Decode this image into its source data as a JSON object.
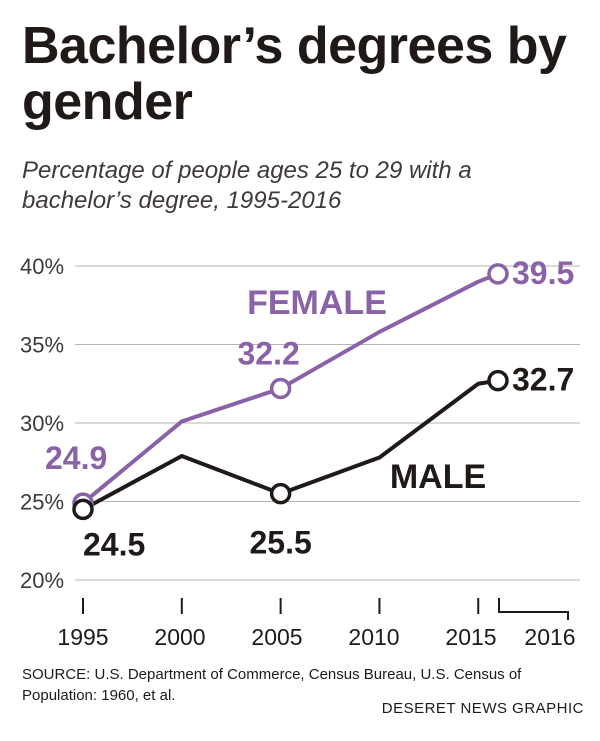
{
  "header": {
    "title": "Bachelor’s degrees by gender",
    "subtitle": "Percentage of people ages 25 to 29 with a bachelor’s degree, 1995-2016"
  },
  "chart_data": {
    "type": "line",
    "title": "Bachelor’s degrees by gender",
    "subtitle": "Percentage of people ages 25 to 29 with a bachelor’s degree, 1995-2016",
    "xlabel": "",
    "ylabel": "",
    "xlim": [
      1995,
      2016
    ],
    "ylim": [
      20,
      40
    ],
    "grid": true,
    "y_ticks": [
      20,
      25,
      30,
      35,
      40
    ],
    "y_tick_labels": [
      "20%",
      "25%",
      "30%",
      "35%",
      "40%"
    ],
    "x_ticks": [
      1995,
      2000,
      2005,
      2010,
      2015,
      2016
    ],
    "x_tick_labels": [
      "1995",
      "2000",
      "2005",
      "2010",
      "2015",
      "2016"
    ],
    "series": [
      {
        "name": "FEMALE",
        "color": "#8a62a8",
        "x": [
          1995,
          2000,
          2005,
          2010,
          2015,
          2016
        ],
        "values": [
          24.9,
          30.1,
          32.2,
          35.8,
          39.0,
          39.5
        ],
        "labeled_points": [
          {
            "x": 1995,
            "y": 24.9,
            "label": "24.9"
          },
          {
            "x": 2005,
            "y": 32.2,
            "label": "32.2"
          },
          {
            "x": 2016,
            "y": 39.5,
            "label": "39.5"
          }
        ]
      },
      {
        "name": "MALE",
        "color": "#1f1a17",
        "x": [
          1995,
          2000,
          2005,
          2010,
          2015,
          2016
        ],
        "values": [
          24.5,
          27.9,
          25.5,
          27.8,
          32.5,
          32.7
        ],
        "labeled_points": [
          {
            "x": 1995,
            "y": 24.5,
            "label": "24.5"
          },
          {
            "x": 2005,
            "y": 25.5,
            "label": "25.5"
          },
          {
            "x": 2016,
            "y": 32.7,
            "label": "32.7"
          }
        ]
      }
    ]
  },
  "footer": {
    "source": "SOURCE: U.S. Department of Commerce, Census Bureau, U.S. Census of Population: 1960, et al.",
    "credit": "DESERET NEWS GRAPHIC"
  }
}
